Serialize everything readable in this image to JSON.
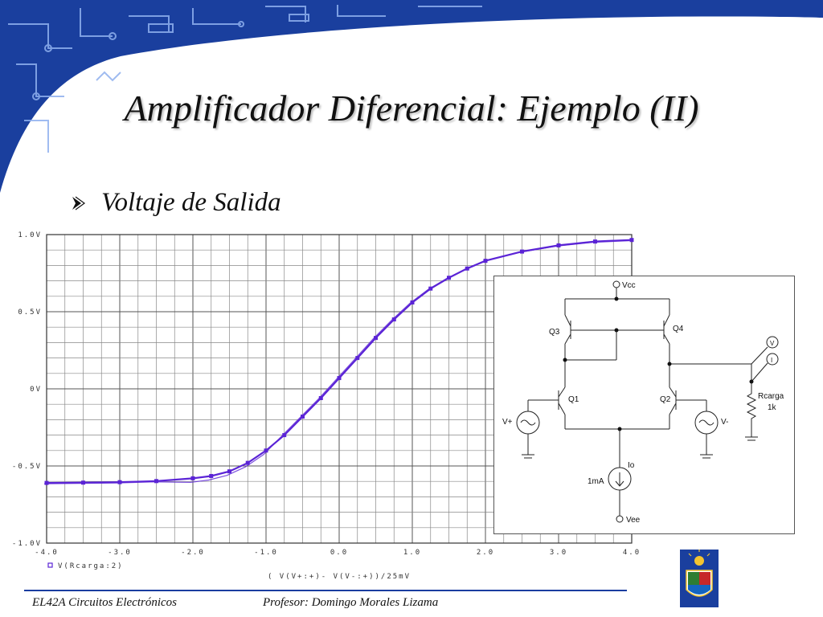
{
  "slide": {
    "title": "Amplificador Diferencial: Ejemplo (II)",
    "bullet": "Voltaje de Salida",
    "footer_left": "EL42A Circuitos Electrónicos",
    "footer_right": "Profesor: Domingo Morales Lizama"
  },
  "colors": {
    "banner": "#1a3f9e",
    "curve": "#5b24d6",
    "footer_line": "#1a3da0"
  },
  "chart_data": {
    "type": "line",
    "xlabel": "( V(V+:+)- V(V-:+))/25mV",
    "xlim": [
      -4.0,
      4.0
    ],
    "ylim": [
      -1.0,
      1.0
    ],
    "x_ticks": [
      "-4.0",
      "-3.0",
      "-2.0",
      "-1.0",
      "0.0",
      "1.0",
      "2.0",
      "3.0",
      "4.0"
    ],
    "y_ticks": [
      "1.0V",
      "0.5V",
      "0V",
      "-0.5V",
      "-1.0V"
    ],
    "grid": true,
    "legend": "bottom-left",
    "series": [
      {
        "name": "V(Rcarga:2)",
        "x": [
          -4.0,
          -3.5,
          -3.0,
          -2.5,
          -2.0,
          -1.75,
          -1.5,
          -1.25,
          -1.0,
          -0.75,
          -0.5,
          -0.25,
          0.0,
          0.25,
          0.5,
          0.75,
          1.0,
          1.25,
          1.5,
          1.75,
          2.0,
          2.5,
          3.0,
          3.5,
          4.0
        ],
        "y": [
          -0.61,
          -0.608,
          -0.605,
          -0.598,
          -0.58,
          -0.565,
          -0.535,
          -0.48,
          -0.4,
          -0.3,
          -0.18,
          -0.06,
          0.07,
          0.2,
          0.33,
          0.45,
          0.56,
          0.65,
          0.72,
          0.78,
          0.83,
          0.89,
          0.93,
          0.955,
          0.965
        ]
      }
    ]
  },
  "circuit": {
    "labels": {
      "vcc": "Vcc",
      "vee": "Vee",
      "q1": "Q1",
      "q2": "Q2",
      "q3": "Q3",
      "q4": "Q4",
      "vplus": "V+",
      "vminus": "V-",
      "io": "Io",
      "io_value": "1mA",
      "rload": "Rcarga",
      "rload_value": "1k",
      "probe_v": "V",
      "probe_i": "I"
    }
  }
}
